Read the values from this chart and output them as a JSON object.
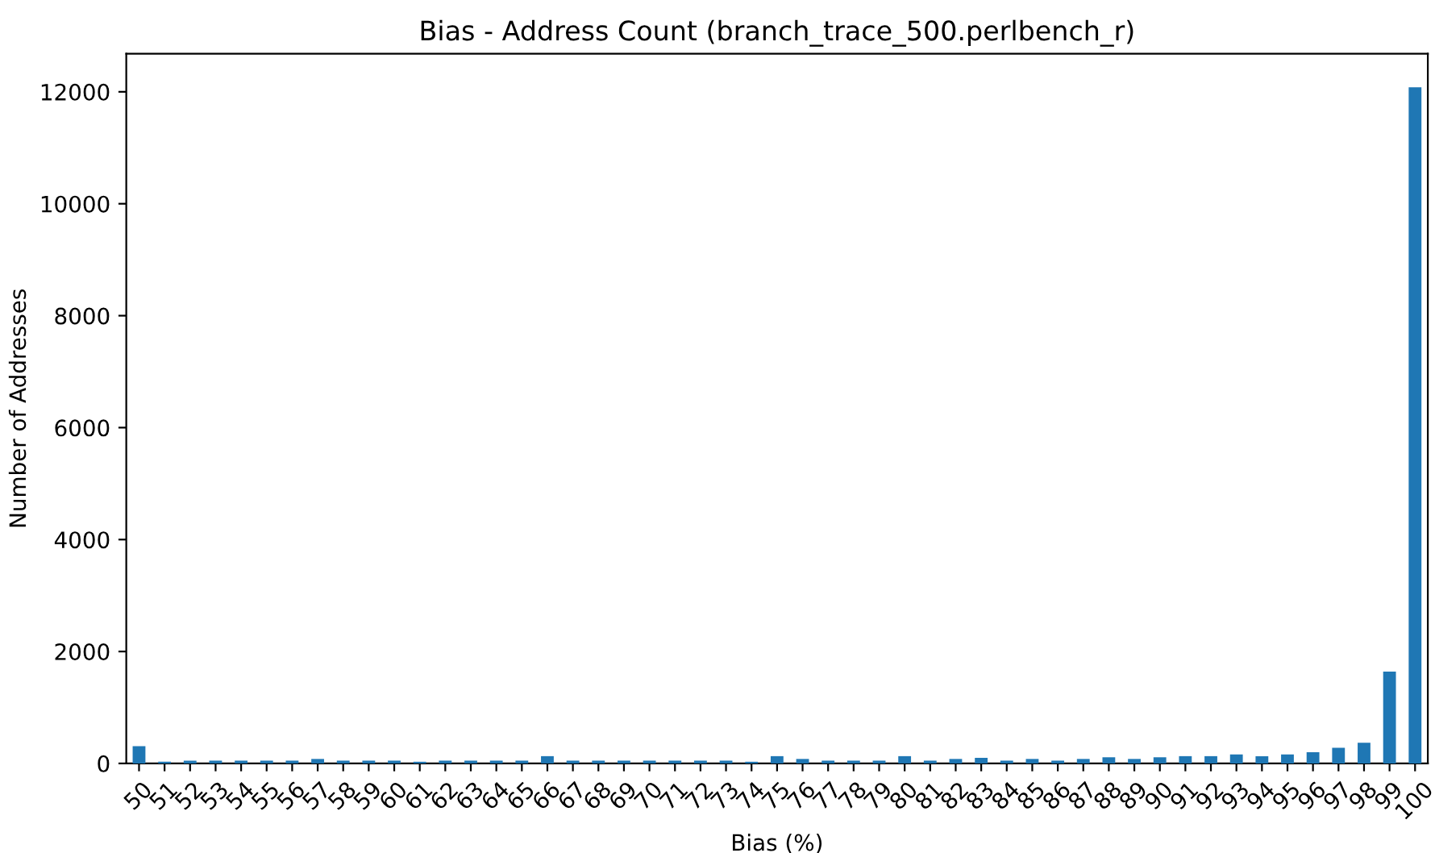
{
  "chart_data": {
    "type": "bar",
    "title": "Bias - Address Count (branch_trace_500.perlbench_r)",
    "xlabel": "Bias (%)",
    "ylabel": "Number of Addresses",
    "categories": [
      "50",
      "51",
      "52",
      "53",
      "54",
      "55",
      "56",
      "57",
      "58",
      "59",
      "60",
      "61",
      "62",
      "63",
      "64",
      "65",
      "66",
      "67",
      "68",
      "69",
      "70",
      "71",
      "72",
      "73",
      "74",
      "75",
      "76",
      "77",
      "78",
      "79",
      "80",
      "81",
      "82",
      "83",
      "84",
      "85",
      "86",
      "87",
      "88",
      "89",
      "90",
      "91",
      "92",
      "93",
      "94",
      "95",
      "96",
      "97",
      "98",
      "99",
      "100"
    ],
    "values": [
      310,
      30,
      50,
      50,
      50,
      50,
      50,
      80,
      50,
      50,
      50,
      30,
      50,
      50,
      50,
      50,
      130,
      50,
      50,
      50,
      50,
      50,
      50,
      50,
      30,
      130,
      80,
      50,
      50,
      50,
      130,
      50,
      80,
      100,
      50,
      80,
      50,
      80,
      110,
      80,
      110,
      130,
      130,
      160,
      130,
      160,
      200,
      280,
      370,
      1640,
      12080
    ],
    "color": "#1f77b4",
    "ylim": [
      0,
      12680
    ],
    "yticks": [
      0,
      2000,
      4000,
      6000,
      8000,
      10000,
      12000
    ],
    "grid": false
  }
}
